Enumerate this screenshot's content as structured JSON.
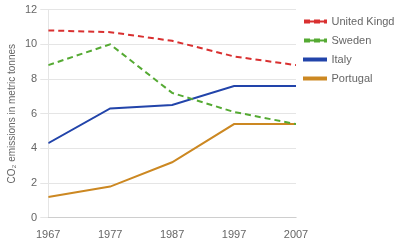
{
  "chart_data": {
    "type": "line",
    "y_label": "CO₂ emissions in metric tonnes",
    "x": [
      1967,
      1977,
      1987,
      1997,
      2007
    ],
    "series": [
      {
        "name": "United Kingdom",
        "color": "#d93030",
        "line_style": "dashed",
        "values": [
          10.8,
          10.7,
          10.2,
          9.3,
          8.8
        ]
      },
      {
        "name": "Sweden",
        "color": "#55aa33",
        "line_style": "dashed",
        "values": [
          8.8,
          10.0,
          7.2,
          6.1,
          5.4
        ]
      },
      {
        "name": "Italy",
        "color": "#2244aa",
        "line_style": "solid",
        "values": [
          4.3,
          6.3,
          6.5,
          7.6,
          7.6
        ]
      },
      {
        "name": "Portugal",
        "color": "#cc8822",
        "line_style": "solid",
        "values": [
          1.2,
          1.8,
          3.2,
          5.4,
          5.4
        ]
      }
    ],
    "xlim": [
      1967,
      2007
    ],
    "xticks": [
      1967,
      1977,
      1987,
      1997,
      2007
    ],
    "ylim": [
      0,
      12
    ],
    "yticks": [
      0,
      2,
      4,
      6,
      8,
      10,
      12
    ],
    "grid": "y",
    "legend": "right"
  }
}
